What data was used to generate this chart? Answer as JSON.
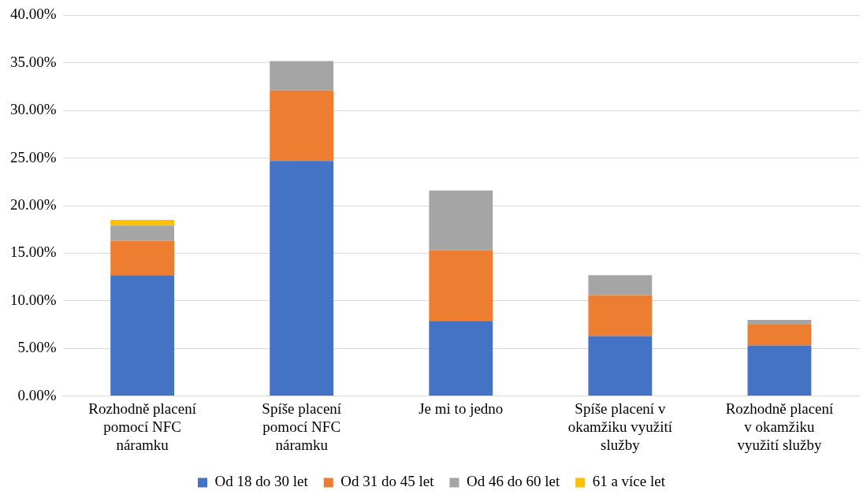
{
  "chart_data": {
    "type": "bar",
    "stacked": true,
    "categories": [
      "Rozhodně placení pomocí NFC náramku",
      "Spíše placení pomocí NFC náramku",
      "Je mi to jedno",
      "Spíše placení v okamžiku využití služby",
      "Rozhodně placení v okamžiku využití služby"
    ],
    "series": [
      {
        "name": "Od 18 do 30 let",
        "color": "#4472c4",
        "values": [
          12.7,
          24.7,
          7.9,
          6.3,
          5.3
        ]
      },
      {
        "name": "Od 31 do 45 let",
        "color": "#ed7d31",
        "values": [
          3.6,
          7.4,
          7.4,
          4.3,
          2.2
        ]
      },
      {
        "name": "Od 46 do 60 let",
        "color": "#a5a5a5",
        "values": [
          1.6,
          3.1,
          6.3,
          2.1,
          0.5
        ]
      },
      {
        "name": "61 a více let",
        "color": "#ffc000",
        "values": [
          0.6,
          0,
          0,
          0,
          0
        ]
      }
    ],
    "ylim": [
      0,
      40
    ],
    "yticks": [
      {
        "value": 0,
        "label": "0.00%"
      },
      {
        "value": 5,
        "label": "5.00%"
      },
      {
        "value": 10,
        "label": "10.00%"
      },
      {
        "value": 15,
        "label": "15.00%"
      },
      {
        "value": 20,
        "label": "20.00%"
      },
      {
        "value": 25,
        "label": "25.00%"
      },
      {
        "value": 30,
        "label": "30.00%"
      },
      {
        "value": 35,
        "label": "35.00%"
      },
      {
        "value": 40,
        "label": "40.00%"
      }
    ],
    "grid": "y",
    "legend": "bottom"
  }
}
